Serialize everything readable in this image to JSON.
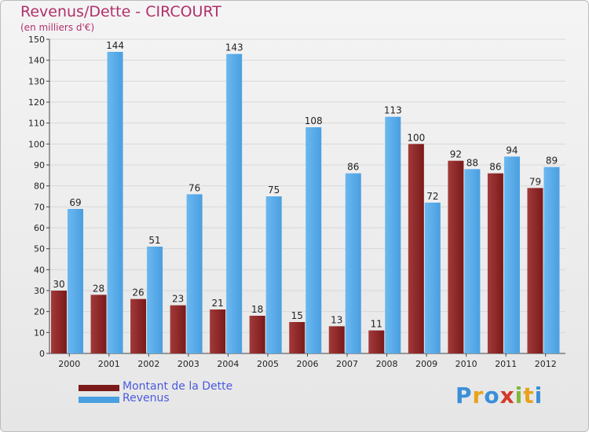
{
  "header": {
    "title": "Revenus/Dette - CIRCOURT",
    "subtitle": "(en milliers d'€)"
  },
  "legend": {
    "debt_label": "Montant de la Dette",
    "revenue_label": "Revenus"
  },
  "logo": {
    "letters": [
      "P",
      "r",
      "o",
      "x",
      "i",
      "t",
      "i"
    ],
    "colors": [
      "#3a8fd8",
      "#e8a21c",
      "#3a8fd8",
      "#d23a2a",
      "#7fb83a",
      "#e8a21c",
      "#3a8fd8"
    ]
  },
  "colors": {
    "debt": "#7a1a1a",
    "debt_light": "#a23a3a",
    "revenue": "#4a9fe0",
    "revenue_light": "#6ab8f0",
    "axis_text": "#222222",
    "grid": "#d8d8d8"
  },
  "chart_data": {
    "type": "bar",
    "title": "Revenus/Dette - CIRCOURT",
    "subtitle": "(en milliers d'€)",
    "categories": [
      "2000",
      "2001",
      "2002",
      "2003",
      "2004",
      "2005",
      "2006",
      "2007",
      "2008",
      "2009",
      "2010",
      "2011",
      "2012"
    ],
    "series": [
      {
        "name": "Montant de la Dette",
        "values": [
          30,
          28,
          26,
          23,
          21,
          18,
          15,
          13,
          11,
          100,
          92,
          86,
          79
        ]
      },
      {
        "name": "Revenus",
        "values": [
          69,
          144,
          51,
          76,
          143,
          75,
          108,
          86,
          113,
          72,
          88,
          94,
          89
        ]
      }
    ],
    "ylim": [
      0,
      150
    ],
    "yticks": [
      0,
      10,
      20,
      30,
      40,
      50,
      60,
      70,
      80,
      90,
      100,
      110,
      120,
      130,
      140,
      150
    ],
    "grid": true,
    "legend_position": "bottom-left"
  }
}
